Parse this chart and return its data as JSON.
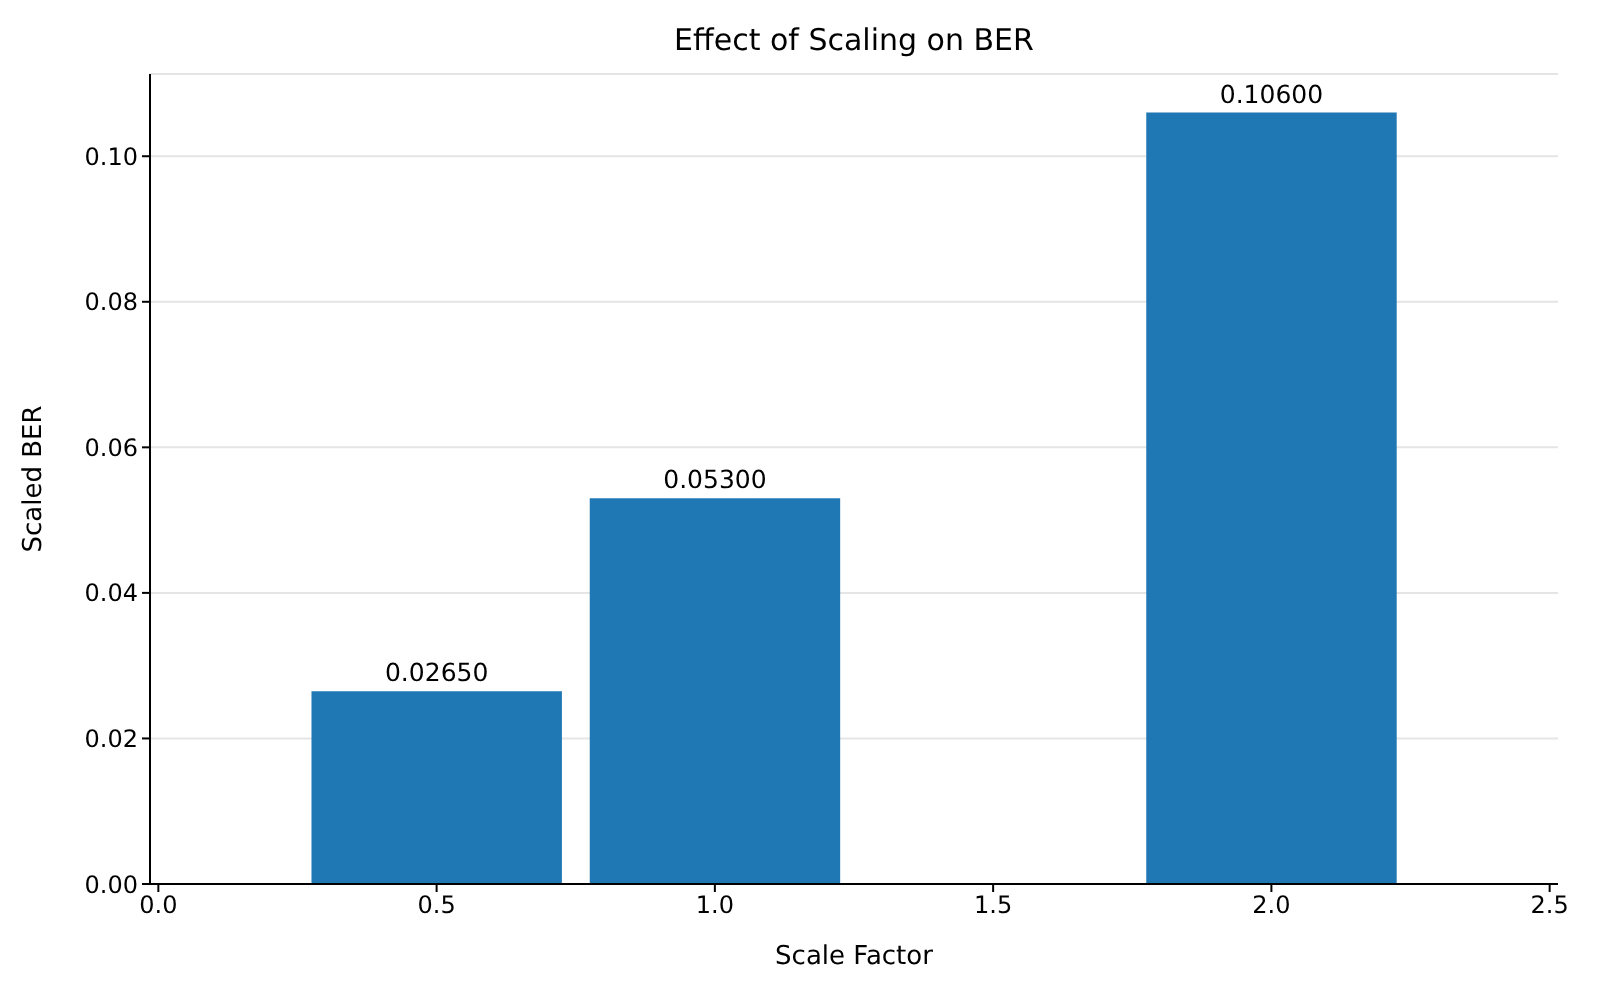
{
  "chart_data": {
    "type": "bar",
    "title": "Effect of Scaling on BER",
    "xlabel": "Scale Factor",
    "ylabel": "Scaled BER",
    "x": [
      0.5,
      1.0,
      2.0
    ],
    "values": [
      0.0265,
      0.053,
      0.106
    ],
    "value_labels": [
      "0.02650",
      "0.05300",
      "0.10600"
    ],
    "color": "#1f77b4",
    "xlim": [
      -0.015,
      2.515
    ],
    "xticks": [
      {
        "value": 0,
        "label": "0.0"
      },
      {
        "value": 0.5,
        "label": "0.5"
      },
      {
        "value": 1,
        "label": "1.0"
      },
      {
        "value": 1.5,
        "label": "1.5"
      },
      {
        "value": 2,
        "label": "2.0"
      },
      {
        "value": 2.5,
        "label": "2.5"
      }
    ],
    "ylim": [
      0,
      0.1113
    ],
    "yticks": [
      {
        "value": 0,
        "label": "0.00"
      },
      {
        "value": 0.02,
        "label": "0.02"
      },
      {
        "value": 0.04,
        "label": "0.04"
      },
      {
        "value": 0.06,
        "label": "0.06"
      },
      {
        "value": 0.08,
        "label": "0.08"
      },
      {
        "value": 0.1,
        "label": "0.10"
      }
    ],
    "grid": "y"
  }
}
